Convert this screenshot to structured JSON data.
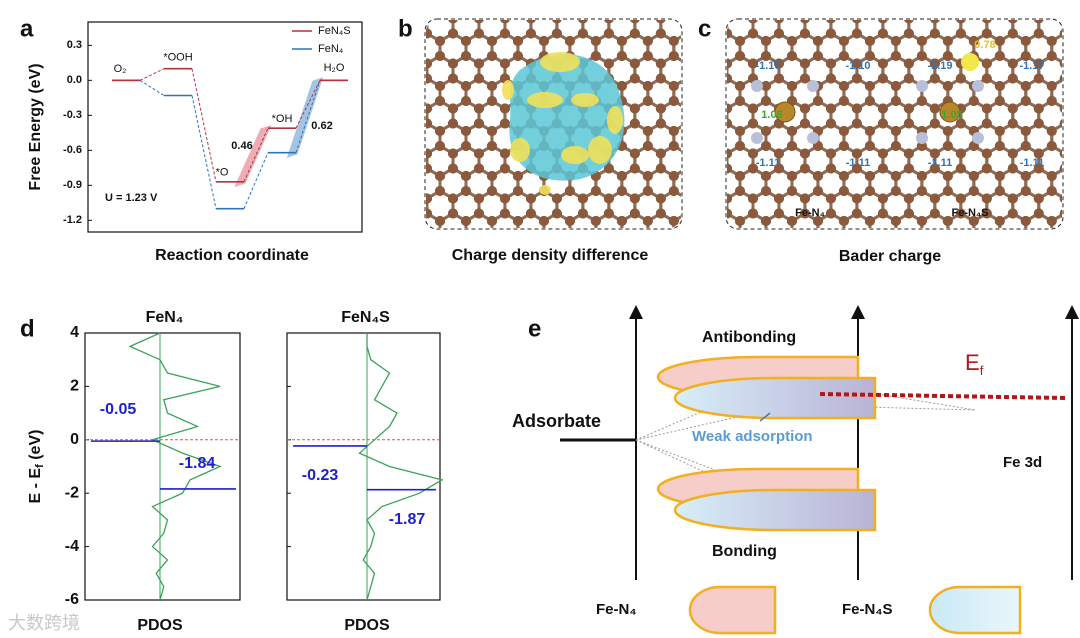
{
  "panel_labels": [
    "a",
    "b",
    "c",
    "d",
    "e"
  ],
  "free_energy": {
    "type": "step",
    "ylabel": "Free Energy (eV)",
    "xlabel": "Reaction coordinate",
    "ylim": [
      -1.3,
      0.5
    ],
    "yticks": [
      -1.2,
      -0.9,
      -0.6,
      -0.3,
      {
        "value": 0,
        "label": "0.0"
      },
      0.3
    ],
    "steps": [
      "O₂",
      "*OOH",
      "*O",
      "*OH",
      "H₂O"
    ],
    "series": [
      {
        "name": "FeN₄S",
        "color": "#b0333d",
        "values": [
          0,
          0.1,
          -0.87,
          -0.41,
          0
        ]
      },
      {
        "name": "FeN₄",
        "color": "#2f74b5",
        "values": [
          0,
          -0.13,
          -1.1,
          -0.62,
          0
        ]
      }
    ],
    "annotations": [
      "0.46",
      "0.62",
      "U = 1.23 V"
    ]
  },
  "charge_density": {
    "caption": "Charge density difference"
  },
  "bader": {
    "caption": "Bader charge",
    "structures": [
      {
        "name": "Fe-N₄",
        "charges": [
          "-1.10",
          "-1.10",
          "1.06",
          "-1.11",
          "-1.11"
        ]
      },
      {
        "name": "Fe-N₄S",
        "charges": [
          "0.78",
          "-1.19",
          "-1.17",
          "1.05",
          "-1.11",
          "-1.11"
        ]
      }
    ]
  },
  "pdos": {
    "type": "pdos",
    "ylabel": {
      "main": "E - E",
      "sub": "f",
      "unit": " (eV)"
    },
    "xlabel": "PDOS",
    "ylim": [
      -6,
      4
    ],
    "yticks": [
      -6,
      -4,
      -2,
      0,
      2,
      4
    ],
    "fermi_level": 0,
    "energy": [
      -6,
      -5.5,
      -5,
      -4.5,
      -4,
      -3.5,
      -3,
      -2.5,
      -2,
      -1.5,
      -1,
      -0.5,
      0,
      0.5,
      1,
      1.5,
      2,
      2.5,
      3,
      3.5,
      4
    ],
    "plots": [
      {
        "title": "FeN₄",
        "color": "#3aa35a",
        "values": [
          0,
          0.05,
          -0.05,
          0.1,
          -0.1,
          0.05,
          0.1,
          -0.1,
          0.3,
          0.4,
          0.8,
          0.3,
          -0.1,
          0.5,
          0.1,
          0.05,
          0.8,
          0.1,
          0,
          -0.4,
          0
        ],
        "d_band": [
          -0.05,
          -1.84
        ]
      },
      {
        "title": "FeN₄S",
        "color": "#3aa35a",
        "values": [
          0,
          0.05,
          0.1,
          -0.05,
          0.05,
          0.1,
          0,
          0.2,
          0.7,
          1.0,
          0.3,
          -0.1,
          0.1,
          0.3,
          0.4,
          0.1,
          0.2,
          0.3,
          0.05,
          0,
          0
        ],
        "d_band": [
          -0.23,
          -1.87
        ]
      }
    ]
  },
  "scheme": {
    "antibonding": "Antibonding",
    "bonding": "Bonding",
    "fermi": {
      "main": "E",
      "sub": "f"
    },
    "adsorbate": "Adsorbate",
    "weak": "Weak adsorption",
    "fe3d": "Fe 3d",
    "legend": [
      "Fe-N₄",
      "Fe-N₄S"
    ]
  },
  "watermark": "大数跨境"
}
